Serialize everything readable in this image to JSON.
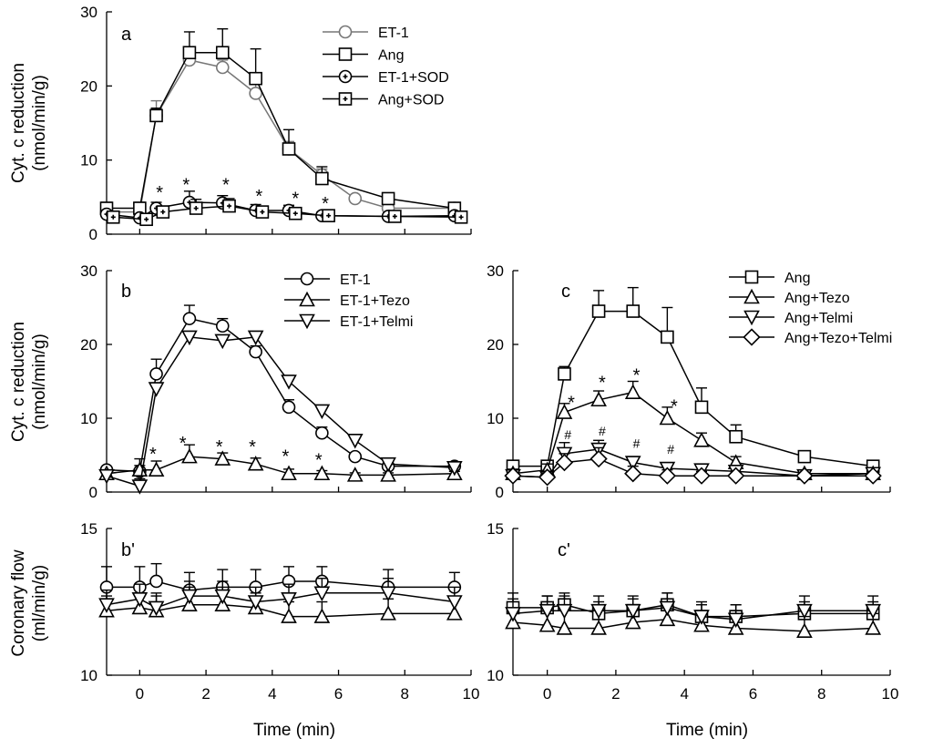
{
  "figure": {
    "xlabel": "Time (min)",
    "ylabel_cyt_line1": "Cyt. c reduction",
    "ylabel_cyt_line2": "(nmol/min/g)",
    "ylabel_flow_line1": "Coronary flow",
    "ylabel_flow_line2": "(ml/min/g)"
  },
  "chart_data": [
    {
      "id": "a",
      "type": "line",
      "panel_label": "a",
      "xlim": [
        -1,
        10
      ],
      "ylim": [
        0,
        30
      ],
      "xticks": [
        0,
        2,
        4,
        6,
        8,
        10
      ],
      "yticks": [
        0,
        10,
        20,
        30
      ],
      "xticklabels": [
        "0",
        "2",
        "4",
        "6",
        "8",
        "10"
      ],
      "yticklabels": [
        "0",
        "10",
        "20",
        "30"
      ],
      "show_xticklabels": false,
      "has_xlabel": false,
      "ylabel_kind": "cyt",
      "series": [
        {
          "name": "ET-1",
          "marker": "circle",
          "color": "#777777",
          "fill": "#ffffff",
          "x": [
            -1,
            0,
            0.5,
            1.5,
            2.5,
            3.5,
            4.5,
            5.5,
            6.5,
            7.5,
            9.5
          ],
          "y": [
            3.0,
            3.0,
            16.0,
            23.5,
            22.5,
            19.0,
            11.5,
            8.0,
            4.8,
            3.5,
            3.5
          ],
          "err": [
            0.6,
            1.0,
            2.0,
            1.6,
            1.0,
            1.2,
            1.0,
            0.8,
            0.4,
            0.3,
            0.4
          ]
        },
        {
          "name": "Ang",
          "marker": "square",
          "color": "#000000",
          "fill": "#ffffff",
          "x": [
            -1,
            0,
            0.5,
            1.5,
            2.5,
            3.5,
            4.5,
            5.5,
            7.5,
            9.5
          ],
          "y": [
            3.5,
            3.5,
            16.0,
            24.5,
            24.5,
            21.0,
            11.5,
            7.5,
            4.8,
            3.5
          ],
          "err": [
            0.8,
            0.8,
            1.0,
            2.8,
            3.2,
            4.0,
            2.6,
            1.6,
            0.5,
            0.6
          ]
        },
        {
          "name": "ET-1+SOD",
          "marker": "circle-dot",
          "color": "#000000",
          "fill": "#ffffff",
          "x": [
            -1,
            0,
            0.5,
            1.5,
            2.5,
            3.5,
            4.5,
            5.5,
            7.5,
            9.5
          ],
          "y": [
            2.7,
            2.2,
            3.5,
            4.3,
            4.2,
            3.2,
            3.2,
            2.5,
            2.4,
            2.5
          ],
          "err": [
            0.5,
            0.5,
            0.8,
            1.5,
            1.0,
            0.8,
            0.7,
            0.5,
            0.4,
            0.4
          ]
        },
        {
          "name": "Ang+SOD",
          "marker": "square-dot",
          "color": "#000000",
          "fill": "#ffffff",
          "x": [
            -0.8,
            0.2,
            0.7,
            1.7,
            2.7,
            3.7,
            4.7,
            5.7,
            7.7,
            9.7
          ],
          "y": [
            2.3,
            2.0,
            3.0,
            3.5,
            3.8,
            3.0,
            2.8,
            2.5,
            2.4,
            2.3
          ],
          "err": [
            0.8,
            0.8,
            0.8,
            1.2,
            1.0,
            0.6,
            0.8,
            0.5,
            0.5,
            0.5
          ]
        }
      ],
      "annotations": [
        {
          "text": "*",
          "x": 0.6,
          "y": 6.3,
          "kind": "star"
        },
        {
          "text": "*",
          "x": 1.4,
          "y": 7.3,
          "kind": "star"
        },
        {
          "text": "*",
          "x": 2.6,
          "y": 7.3,
          "kind": "star"
        },
        {
          "text": "*",
          "x": 3.6,
          "y": 5.8,
          "kind": "star"
        },
        {
          "text": "*",
          "x": 4.7,
          "y": 5.5,
          "kind": "star"
        },
        {
          "text": "*",
          "x": 5.6,
          "y": 4.8,
          "kind": "star"
        }
      ]
    },
    {
      "id": "b",
      "type": "line",
      "panel_label": "b",
      "xlim": [
        -1,
        10
      ],
      "ylim": [
        0,
        30
      ],
      "xticks": [
        0,
        2,
        4,
        6,
        8,
        10
      ],
      "yticks": [
        0,
        10,
        20,
        30
      ],
      "xticklabels": [
        "0",
        "2",
        "4",
        "6",
        "8",
        "10"
      ],
      "yticklabels": [
        "0",
        "10",
        "20",
        "30"
      ],
      "show_xticklabels": false,
      "has_xlabel": false,
      "ylabel_kind": "cyt",
      "series": [
        {
          "name": "ET-1",
          "marker": "circle",
          "color": "#000000",
          "fill": "#ffffff",
          "x": [
            -1,
            0,
            0.5,
            1.5,
            2.5,
            3.5,
            4.5,
            5.5,
            6.5,
            7.5,
            9.5
          ],
          "y": [
            3.0,
            2.8,
            16.0,
            23.5,
            22.5,
            19.0,
            11.5,
            8.0,
            4.8,
            3.5,
            3.5
          ],
          "err": [
            0.4,
            0.8,
            2.0,
            1.8,
            1.0,
            0.8,
            1.0,
            0.8,
            0.4,
            0.3,
            0.3
          ]
        },
        {
          "name": "ET-1+Tezo",
          "marker": "triangle-up",
          "color": "#000000",
          "fill": "#ffffff",
          "x": [
            -1,
            0,
            0.5,
            1.5,
            2.5,
            3.5,
            4.5,
            5.5,
            6.5,
            7.5,
            9.5
          ],
          "y": [
            2.5,
            3.0,
            3.0,
            4.8,
            4.5,
            3.8,
            2.5,
            2.5,
            2.3,
            2.3,
            2.5
          ],
          "err": [
            0.4,
            1.5,
            1.2,
            1.6,
            0.8,
            0.8,
            0.6,
            0.4,
            0.3,
            0.3,
            0.3
          ]
        },
        {
          "name": "ET-1+Telmi",
          "marker": "triangle-down",
          "color": "#000000",
          "fill": "#ffffff",
          "x": [
            -1,
            0,
            0.5,
            1.5,
            2.5,
            3.5,
            4.5,
            5.5,
            6.5,
            7.5,
            9.5
          ],
          "y": [
            2.2,
            0.8,
            14.0,
            21.0,
            20.5,
            21.0,
            15.0,
            11.0,
            7.0,
            3.8,
            3.3
          ],
          "err": [
            0.3,
            1.0,
            0.8,
            0.5,
            0.6,
            0.5,
            0.8,
            0.6,
            0.4,
            0.3,
            0.3
          ]
        }
      ],
      "annotations": [
        {
          "text": "*",
          "x": 0.4,
          "y": 5.8,
          "kind": "star"
        },
        {
          "text": "*",
          "x": 1.3,
          "y": 7.3,
          "kind": "star"
        },
        {
          "text": "*",
          "x": 2.4,
          "y": 6.8,
          "kind": "star"
        },
        {
          "text": "*",
          "x": 3.4,
          "y": 6.8,
          "kind": "star"
        },
        {
          "text": "*",
          "x": 4.4,
          "y": 5.5,
          "kind": "star"
        },
        {
          "text": "*",
          "x": 5.4,
          "y": 5.0,
          "kind": "star"
        }
      ]
    },
    {
      "id": "c",
      "type": "line",
      "panel_label": "c",
      "xlim": [
        -1,
        10
      ],
      "ylim": [
        0,
        30
      ],
      "xticks": [
        0,
        2,
        4,
        6,
        8,
        10
      ],
      "yticks": [
        0,
        10,
        20,
        30
      ],
      "xticklabels": [
        "0",
        "2",
        "4",
        "6",
        "8",
        "10"
      ],
      "yticklabels": [
        "0",
        "10",
        "20",
        "30"
      ],
      "show_xticklabels": false,
      "has_xlabel": false,
      "ylabel_kind": "none",
      "series": [
        {
          "name": "Ang",
          "marker": "square",
          "color": "#000000",
          "fill": "#ffffff",
          "x": [
            -1,
            0,
            0.5,
            1.5,
            2.5,
            3.5,
            4.5,
            5.5,
            7.5,
            9.5
          ],
          "y": [
            3.5,
            3.5,
            16.0,
            24.5,
            24.5,
            21.0,
            11.5,
            7.5,
            4.8,
            3.5
          ],
          "err": [
            0.8,
            0.8,
            1.0,
            2.8,
            3.2,
            4.0,
            2.6,
            1.6,
            0.5,
            0.6
          ]
        },
        {
          "name": "Ang+Tezo",
          "marker": "triangle-up",
          "color": "#000000",
          "fill": "#ffffff",
          "x": [
            -1,
            0,
            0.5,
            1.5,
            2.5,
            3.5,
            4.5,
            5.5,
            7.5,
            9.5
          ],
          "y": [
            2.5,
            3.0,
            10.8,
            12.5,
            13.5,
            10.0,
            7.0,
            4.0,
            2.5,
            2.5
          ],
          "err": [
            0.6,
            0.8,
            1.2,
            1.2,
            1.5,
            1.5,
            1.0,
            0.8,
            0.4,
            0.4
          ]
        },
        {
          "name": "Ang+Telmi",
          "marker": "triangle-down",
          "color": "#000000",
          "fill": "#ffffff",
          "x": [
            -1,
            0,
            0.5,
            1.5,
            2.5,
            3.5,
            4.5,
            5.5,
            7.5,
            9.5
          ],
          "y": [
            2.2,
            2.0,
            5.2,
            5.8,
            4.0,
            3.2,
            3.0,
            2.8,
            2.2,
            2.5
          ],
          "err": [
            0.6,
            0.6,
            1.5,
            1.2,
            0.8,
            0.6,
            0.5,
            0.5,
            0.4,
            0.4
          ]
        },
        {
          "name": "Ang+Tezo+Telmi",
          "marker": "diamond",
          "color": "#000000",
          "fill": "#ffffff",
          "x": [
            -1,
            0,
            0.5,
            1.5,
            2.5,
            3.5,
            4.5,
            5.5,
            7.5,
            9.5
          ],
          "y": [
            2.2,
            2.0,
            4.0,
            4.5,
            2.5,
            2.2,
            2.2,
            2.2,
            2.2,
            2.2
          ],
          "err": [
            0.8,
            0.6,
            1.2,
            1.5,
            1.0,
            0.8,
            0.6,
            0.5,
            0.4,
            0.5
          ]
        }
      ],
      "annotations": [
        {
          "text": "*",
          "x": 0.7,
          "y": 12.8,
          "kind": "star"
        },
        {
          "text": "*",
          "x": 1.6,
          "y": 15.5,
          "kind": "star"
        },
        {
          "text": "*",
          "x": 2.6,
          "y": 16.5,
          "kind": "star"
        },
        {
          "text": "*",
          "x": 3.7,
          "y": 12.3,
          "kind": "star"
        },
        {
          "text": "#",
          "x": 0.6,
          "y": 7.8,
          "kind": "hash"
        },
        {
          "text": "#",
          "x": 1.6,
          "y": 8.3,
          "kind": "hash"
        },
        {
          "text": "#",
          "x": 2.6,
          "y": 6.6,
          "kind": "hash"
        },
        {
          "text": "#",
          "x": 3.6,
          "y": 5.8,
          "kind": "hash"
        }
      ]
    },
    {
      "id": "b-prime",
      "type": "line",
      "panel_label": "b'",
      "xlim": [
        -1,
        10
      ],
      "ylim": [
        10,
        15
      ],
      "xticks": [
        0,
        2,
        4,
        6,
        8,
        10
      ],
      "yticks": [
        10,
        15
      ],
      "xticklabels": [
        "0",
        "2",
        "4",
        "6",
        "8",
        "10"
      ],
      "yticklabels": [
        "10",
        "15"
      ],
      "show_xticklabels": true,
      "has_xlabel": true,
      "ylabel_kind": "flow",
      "series": [
        {
          "name": "ET-1",
          "marker": "circle",
          "color": "#000000",
          "fill": "#ffffff",
          "x": [
            -1,
            0,
            0.5,
            1.5,
            2.5,
            3.5,
            4.5,
            5.5,
            7.5,
            9.5
          ],
          "y": [
            13.0,
            13.0,
            13.2,
            12.9,
            13.0,
            13.0,
            13.2,
            13.2,
            13.0,
            13.0
          ],
          "err": [
            0.7,
            0.7,
            0.6,
            0.6,
            0.6,
            0.6,
            0.5,
            0.5,
            0.6,
            0.5
          ]
        },
        {
          "name": "ET-1+Tezo",
          "marker": "triangle-up",
          "color": "#000000",
          "fill": "#ffffff",
          "x": [
            -1,
            0,
            0.5,
            1.5,
            2.5,
            3.5,
            4.5,
            5.5,
            7.5,
            9.5
          ],
          "y": [
            12.2,
            12.3,
            12.2,
            12.4,
            12.4,
            12.3,
            12.0,
            12.0,
            12.1,
            12.1
          ],
          "err": [
            0.5,
            0.5,
            0.5,
            0.6,
            0.6,
            0.5,
            0.5,
            0.5,
            0.5,
            0.5
          ]
        },
        {
          "name": "ET-1+Telmi",
          "marker": "triangle-down",
          "color": "#000000",
          "fill": "#ffffff",
          "x": [
            -1,
            0,
            0.5,
            1.5,
            2.5,
            3.5,
            4.5,
            5.5,
            7.5,
            9.5
          ],
          "y": [
            12.4,
            12.6,
            12.3,
            12.7,
            12.7,
            12.5,
            12.6,
            12.8,
            12.8,
            12.5
          ],
          "err": [
            0.5,
            0.5,
            0.5,
            0.5,
            0.5,
            0.5,
            0.5,
            0.5,
            0.5,
            0.5
          ]
        }
      ],
      "annotations": []
    },
    {
      "id": "c-prime",
      "type": "line",
      "panel_label": "c'",
      "xlim": [
        -1,
        10
      ],
      "ylim": [
        10,
        15
      ],
      "xticks": [
        0,
        2,
        4,
        6,
        8,
        10
      ],
      "yticks": [
        10,
        15
      ],
      "xticklabels": [
        "0",
        "2",
        "4",
        "6",
        "8",
        "10"
      ],
      "yticklabels": [
        "10",
        "15"
      ],
      "show_xticklabels": true,
      "has_xlabel": true,
      "ylabel_kind": "none",
      "series": [
        {
          "name": "Ang",
          "marker": "square",
          "color": "#000000",
          "fill": "#ffffff",
          "x": [
            -1,
            0,
            0.5,
            1.5,
            2.5,
            3.5,
            4.5,
            5.5,
            7.5,
            9.5
          ],
          "y": [
            12.3,
            12.3,
            12.4,
            12.1,
            12.2,
            12.4,
            12.0,
            12.0,
            12.1,
            12.1
          ],
          "err": [
            0.5,
            0.4,
            0.4,
            0.4,
            0.4,
            0.4,
            0.4,
            0.4,
            0.4,
            0.4
          ]
        },
        {
          "name": "Ang+Tezo",
          "marker": "triangle-up",
          "color": "#000000",
          "fill": "#ffffff",
          "x": [
            -1,
            0,
            0.5,
            1.5,
            2.5,
            3.5,
            4.5,
            5.5,
            7.5,
            9.5
          ],
          "y": [
            11.8,
            11.7,
            11.6,
            11.6,
            11.8,
            11.9,
            11.7,
            11.6,
            11.5,
            11.6
          ],
          "err": [
            0.5,
            0.6,
            0.6,
            0.6,
            0.5,
            0.5,
            0.5,
            0.6,
            0.5,
            0.5
          ]
        },
        {
          "name": "Ang+Telmi",
          "marker": "triangle-down",
          "color": "#000000",
          "fill": "#ffffff",
          "x": [
            -1,
            0,
            0.5,
            1.5,
            2.5,
            3.5,
            4.5,
            5.5,
            7.5,
            9.5
          ],
          "y": [
            12.1,
            12.2,
            12.2,
            12.2,
            12.2,
            12.3,
            12.0,
            11.9,
            12.2,
            12.2
          ],
          "err": [
            0.5,
            0.5,
            0.5,
            0.5,
            0.5,
            0.5,
            0.5,
            0.5,
            0.5,
            0.5
          ]
        }
      ],
      "annotations": []
    }
  ]
}
